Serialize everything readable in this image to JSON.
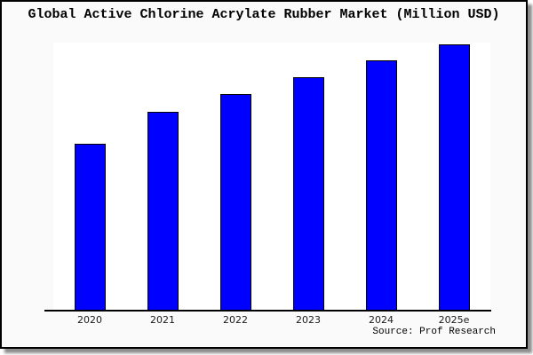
{
  "frame": {
    "background": "#fafafa",
    "border_color": "#000000",
    "plot_background": "#ffffff"
  },
  "title": "Global Active Chlorine Acrylate Rubber Market (Million USD)",
  "source": "Source: Prof Research",
  "chart_data": {
    "type": "bar",
    "title": "Global Active Chlorine Acrylate Rubber Market (Million USD)",
    "categories": [
      "2020",
      "2021",
      "2022",
      "2023",
      "2024",
      "2025e"
    ],
    "values": [
      62.7,
      74.7,
      81.3,
      87.7,
      94.0,
      100.0
    ],
    "xlabel": "",
    "ylabel": "",
    "ylim": [
      0,
      100.7
    ],
    "y_axis_shown": false,
    "grid": false,
    "legend": false,
    "bar_color": "#0000ff",
    "bar_edge_color": "#000000",
    "note": "No y-axis scale or value labels are shown in the image; values are relative bar heights normalized so 2025e = 100."
  }
}
